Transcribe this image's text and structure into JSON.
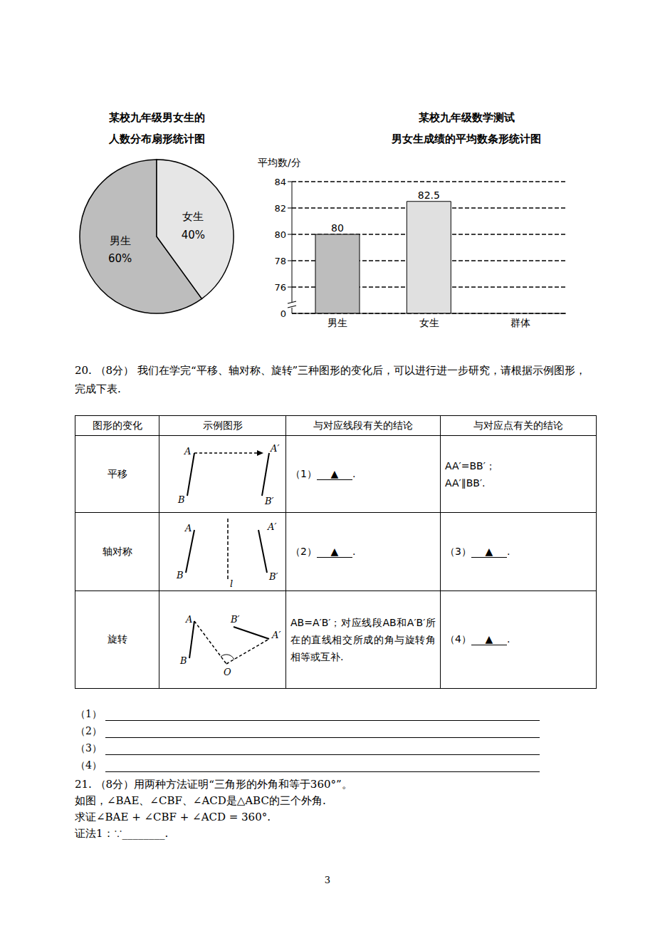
{
  "chart_data": [
    {
      "type": "pie",
      "title": [
        "某校九年级男女生的",
        "人数分布扇形统计图"
      ],
      "categories": [
        "男生",
        "女生"
      ],
      "values": [
        60,
        40
      ],
      "value_labels": [
        "60%",
        "40%"
      ],
      "colors": [
        "#bdbdbd",
        "#e6e6e6"
      ],
      "data_labels": true
    },
    {
      "type": "bar",
      "title": [
        "某校九年级数学测试",
        "男女生成绩的平均数条形统计图"
      ],
      "y_label": "平均数/分",
      "categories": [
        "男生",
        "女生",
        "群体"
      ],
      "values": [
        80,
        82.5,
        null
      ],
      "colors": [
        "#bdbdbd",
        "#e0e0e0",
        "#ffffff"
      ],
      "ylim": [
        74,
        84
      ],
      "yticks": [
        76,
        78,
        80,
        82,
        84
      ],
      "y_axis_break": {
        "label": "0"
      },
      "grid": true,
      "data_labels": true
    }
  ],
  "question_20": {
    "text": "20. （8分） 我们在学完“平移、轴对称、旋转”三种图形的变化后，可以进行进一步研究，请根据示例图形，完成下表.",
    "table": {
      "header": [
        "图形的变化",
        "示例图形",
        "与对应线段有关的结论",
        "与对应点有关的结论"
      ],
      "rows": [
        {
          "transformation": "平移",
          "figure_labels": [
            "A",
            "B",
            "A′",
            "B′"
          ],
          "segment": {
            "number": "（1）",
            "blank": "▲",
            "end": "."
          },
          "point": {
            "lines": [
              "AA′=BB′；",
              "AA′∥BB′."
            ]
          }
        },
        {
          "transformation": "轴对称",
          "figure_labels": [
            "A",
            "B",
            "A′",
            "B′",
            "l"
          ],
          "segment": {
            "number": "（2）",
            "blank": "▲",
            "end": "."
          },
          "point": {
            "number": "（3）",
            "blank": "▲",
            "end": "."
          }
        },
        {
          "transformation": "旋转",
          "figure_labels": [
            "A",
            "B",
            "B′",
            "A′",
            "O"
          ],
          "segment": {
            "lines": [
              "AB=A′B′；对应线段AB和A′B′所在的直线相交所成的角与旋转角相等或互补."
            ]
          },
          "point": {
            "number": "（4）",
            "blank": "▲",
            "end": "."
          }
        }
      ]
    },
    "answer_lines": [
      "（1）",
      "（2）",
      "（3）",
      "（4）"
    ]
  },
  "question_21": {
    "lines": [
      "21. （8分）用两种方法证明“三角形的外角和等于360°”。",
      "如图，∠BAE、∠CBF、∠ACD是△ABC的三个外角.",
      "求证∠BAE + ∠CBF + ∠ACD = 360°.",
      "证法1：∵________."
    ]
  },
  "page_number": "3"
}
